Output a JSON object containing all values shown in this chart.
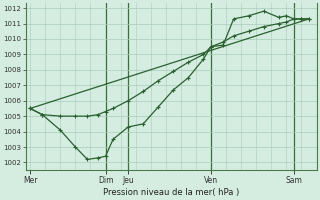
{
  "xlabel": "Pression niveau de la mer( hPa )",
  "ylim": [
    1001.5,
    1012.3
  ],
  "yticks": [
    1002,
    1003,
    1004,
    1005,
    1006,
    1007,
    1008,
    1009,
    1010,
    1011,
    1012
  ],
  "bg_color": "#d4ede0",
  "grid_color": "#a8ccb8",
  "line_color": "#2a6030",
  "marker_color": "#2a6030",
  "day_labels": [
    "Mer",
    "Dim",
    "Jeu",
    "Ven",
    "Sam"
  ],
  "day_positions": [
    0.0,
    5.0,
    6.5,
    12.0,
    17.5
  ],
  "vline_positions": [
    5.0,
    6.5,
    12.0,
    17.5
  ],
  "x_total_min": -0.3,
  "x_total_max": 19.0,
  "series1_x": [
    0,
    0.8,
    2.0,
    3.0,
    3.8,
    4.5,
    5.0,
    5.5,
    6.5,
    7.5,
    8.5,
    9.5,
    10.5,
    11.5,
    12.0,
    12.8,
    13.5,
    14.5,
    15.5,
    16.5,
    17.0,
    17.5,
    18.0,
    18.5
  ],
  "series1_y": [
    1005.5,
    1005.1,
    1004.1,
    1003.0,
    1002.2,
    1002.3,
    1002.4,
    1003.5,
    1004.3,
    1004.5,
    1005.6,
    1006.7,
    1007.5,
    1008.7,
    1009.5,
    1009.6,
    1011.3,
    1011.5,
    1011.8,
    1011.4,
    1011.5,
    1011.3,
    1011.3,
    1011.3
  ],
  "series2_x": [
    0,
    0.8,
    2.0,
    3.0,
    3.8,
    4.5,
    5.0,
    5.5,
    6.5,
    7.5,
    8.5,
    9.5,
    10.5,
    11.5,
    12.0,
    12.8,
    13.5,
    14.5,
    15.5,
    16.5,
    17.0,
    17.5,
    18.0,
    18.5
  ],
  "series2_y": [
    1005.5,
    1005.1,
    1005.0,
    1005.0,
    1005.0,
    1005.1,
    1005.3,
    1005.5,
    1006.0,
    1006.6,
    1007.3,
    1007.9,
    1008.5,
    1009.0,
    1009.5,
    1009.8,
    1010.2,
    1010.5,
    1010.8,
    1011.0,
    1011.1,
    1011.3,
    1011.3,
    1011.3
  ],
  "series3_x": [
    0,
    18.5
  ],
  "series3_y": [
    1005.5,
    1011.3
  ],
  "minor_xtick_count": 4
}
